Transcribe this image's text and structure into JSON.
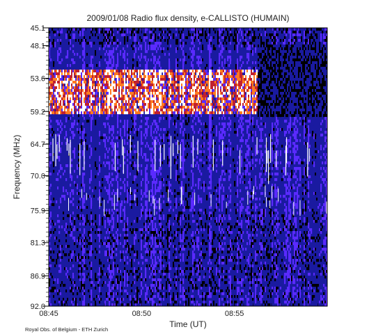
{
  "chart_data": {
    "type": "heatmap",
    "title": "2009/01/08  Radio flux density, e-CALLISTO (HUMAIN)",
    "xlabel": "Time (UT)",
    "ylabel": "Frequency (MHz)",
    "footer": "Royal Obs. of Belgium - ETH Zurich",
    "x_range_min": [
      0,
      15
    ],
    "x_ticks": [
      {
        "value": 0,
        "label": "08:45"
      },
      {
        "value": 5,
        "label": "08:50"
      },
      {
        "value": 10,
        "label": "08:55"
      }
    ],
    "y_range": [
      45.1,
      92.0
    ],
    "y_ticks": [
      45.1,
      48.1,
      53.6,
      59.2,
      64.7,
      70.0,
      75.9,
      81.3,
      86.9,
      92.0
    ],
    "y_tick_labels": [
      "45.1",
      "48.1",
      "53.6",
      "59.2",
      "64.7",
      "70.0",
      "75.9",
      "81.3",
      "86.9",
      "92.0"
    ],
    "colormap": [
      "#000000",
      "#1a1aa0",
      "#2222ff",
      "#5a2aff",
      "#c02030",
      "#ff7a20",
      "#ffffff"
    ],
    "features": [
      {
        "name": "bright band",
        "freq_min": 53.6,
        "freq_max": 59.2,
        "color": "#ff7a20"
      },
      {
        "name": "dark band",
        "freq_min": 48.1,
        "freq_max": 59.2,
        "color": "#000000"
      }
    ]
  }
}
